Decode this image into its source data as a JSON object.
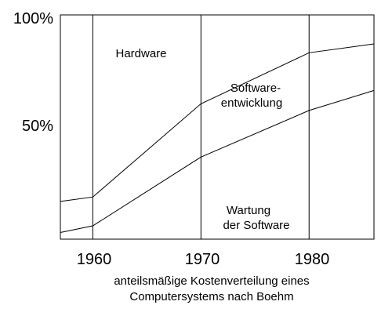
{
  "chart_data": {
    "type": "area",
    "xlabel": [
      "anteilsmäßige Kostenverteilung eines",
      "Computersystems nach Boehm"
    ],
    "xlim": [
      1957,
      1986
    ],
    "ylim": [
      0,
      100
    ],
    "x_ticks": [
      "1960",
      "1970",
      "1980"
    ],
    "y_ticks": [
      "50%",
      "100%"
    ],
    "grid": {
      "vertical_at": [
        1960,
        1970,
        1980
      ]
    },
    "regions": [
      "Hardware",
      "Software-entwicklung",
      "Wartung der Software"
    ],
    "region_labels": {
      "hardware": "Hardware",
      "entwicklung_line1": "Software-",
      "entwicklung_line2": "entwicklung",
      "wartung_line1": "Wartung",
      "wartung_line2": "der Software"
    },
    "series": [
      {
        "x": [
          1957,
          1960,
          1970,
          1980,
          1986
        ],
        "values": [
          17,
          19,
          61,
          84,
          88
        ]
      },
      {
        "x": [
          1957,
          1960,
          1970,
          1980,
          1986
        ],
        "values": [
          3,
          6,
          37,
          58,
          67
        ]
      }
    ]
  }
}
